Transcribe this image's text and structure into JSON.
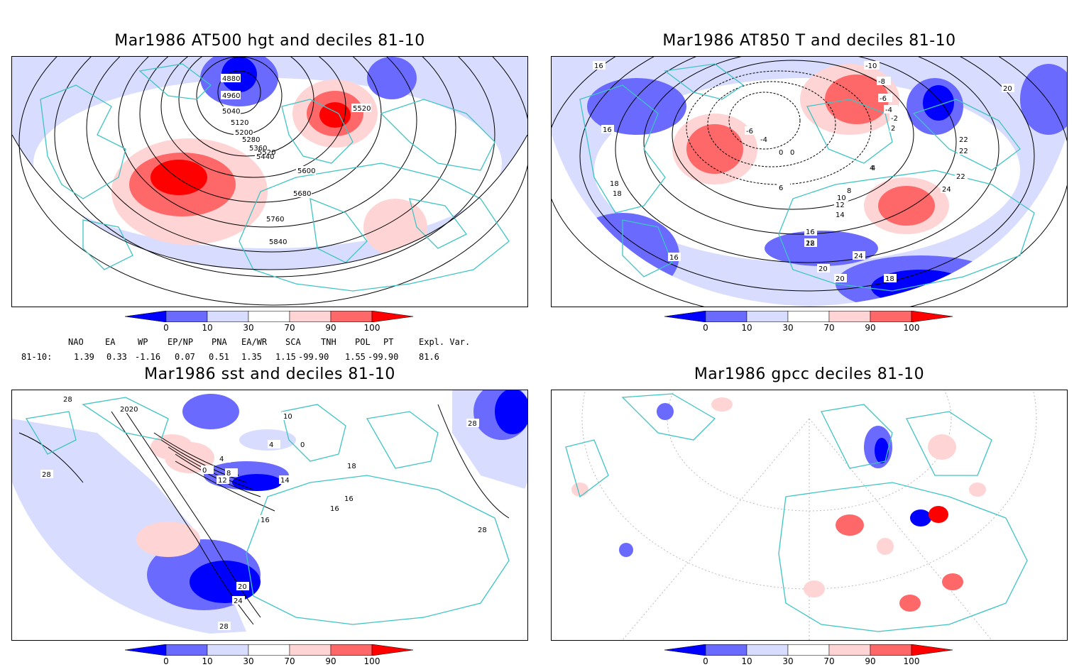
{
  "panels": [
    {
      "title": "Mar1986 AT500 hgt and deciles 81-10",
      "contour_labels": [
        "4880",
        "4960",
        "5040",
        "5120",
        "5200",
        "5280",
        "5360",
        "5440",
        "5520",
        "5520",
        "5600",
        "5680",
        "5760",
        "5840"
      ]
    },
    {
      "title": "Mar1986 AT850 T and deciles 81-10",
      "contour_labels": [
        "16",
        "16",
        "18",
        "18",
        "-10",
        "-8",
        "-6",
        "-4",
        "-2",
        "0",
        "2",
        "4",
        "-4",
        "-6",
        "0",
        "4",
        "6",
        "8",
        "10",
        "12",
        "14",
        "16",
        "18",
        "16",
        "20",
        "22",
        "22",
        "24",
        "22",
        "20",
        "24",
        "18",
        "20",
        "22"
      ]
    },
    {
      "title": "Mar1986 sst and deciles 81-10",
      "contour_labels": [
        "28",
        "28",
        "2020",
        "0",
        "4",
        "8",
        "12",
        "16",
        "14",
        "10",
        "4",
        "0",
        "18",
        "16",
        "16",
        "28",
        "28",
        "28",
        "24",
        "20"
      ]
    },
    {
      "title": "Mar1986 gpcc deciles 81-10",
      "contour_labels": []
    }
  ],
  "colorbar": {
    "labels": [
      "0",
      "10",
      "30",
      "70",
      "90",
      "100"
    ],
    "colors": [
      "#0000ff",
      "#6a6aff",
      "#d8dcff",
      "#ffffff",
      "#ffd4d4",
      "#ff6868",
      "#ff0000"
    ]
  },
  "teleconnections": {
    "headers": [
      "NAO",
      "EA",
      "WP",
      "EP/NP",
      "PNA",
      "EA/WR",
      "SCA",
      "TNH",
      "POL",
      "PT",
      "Expl. Var."
    ],
    "row_label": "81-10:",
    "values": [
      "1.39",
      "0.33",
      "-1.16",
      "0.07",
      "0.51",
      "1.35",
      "1.15",
      "-99.90",
      "1.55",
      "-99.90",
      "81.6"
    ]
  }
}
